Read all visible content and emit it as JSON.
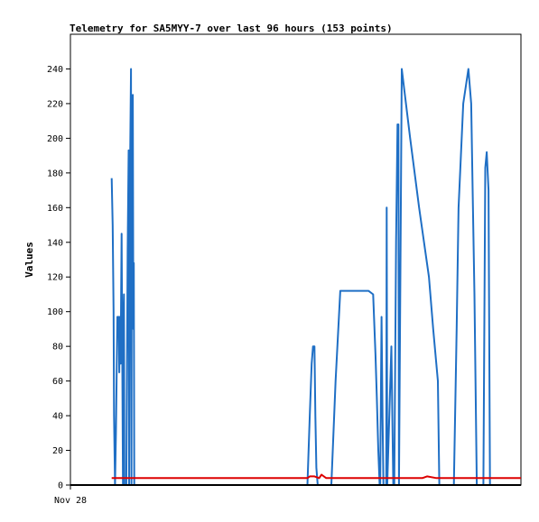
{
  "chart_data": {
    "type": "line",
    "title": "Telemetry for SA5MYY-7 over last 96 hours (153 points)",
    "xlabel": "",
    "ylabel": "Values",
    "x_tick_labels": [
      "Nov 28"
    ],
    "ylim": [
      0,
      260
    ],
    "y_ticks": [
      0,
      20,
      40,
      60,
      80,
      100,
      120,
      140,
      160,
      180,
      200,
      220,
      240
    ],
    "xlim": [
      0,
      96
    ],
    "grid": false,
    "legend": "none",
    "colors": {
      "series_blue": "#1f6fc5",
      "series_red": "#dd0000",
      "series_black": "#000000",
      "frame": "#000000"
    },
    "series": [
      {
        "color": "#1f6fc5",
        "x": [
          8.8,
          9.0,
          9.2,
          9.3,
          9.5,
          9.7,
          10.0,
          10.3,
          10.4,
          10.5,
          10.7,
          10.9,
          11.2,
          11.3,
          11.4,
          11.5,
          11.7,
          11.9,
          12.2,
          12.4,
          12.5,
          12.7,
          12.9,
          13.0,
          13.1,
          13.2,
          13.3,
          13.4,
          13.5,
          13.6,
          13.7,
          13.8,
          13.9,
          14.0,
          14.1,
          14.2,
          14.4,
          14.6,
          14.8,
          50.5,
          51.0,
          51.4,
          51.7,
          52.0,
          52.2,
          52.4,
          52.7,
          53.2,
          55.6,
          56.5,
          57.5,
          58.5,
          63.5,
          64.5,
          65.0,
          65.3,
          65.6,
          65.9,
          66.0,
          66.3,
          66.5,
          66.7,
          67.0,
          67.3,
          67.4,
          67.5,
          68.4,
          68.8,
          69.0,
          69.4,
          69.7,
          69.9,
          70.0,
          70.6,
          72.4,
          74.3,
          76.4,
          77.3,
          78.3,
          78.6,
          79.8,
          80.8,
          81.7,
          82.3,
          82.7,
          83.7,
          84.8,
          85.4,
          85.7,
          86.1,
          86.6,
          87.1,
          87.6,
          88.0,
          88.4,
          88.7,
          89.1,
          89.4
        ],
        "values": [
          177,
          150,
          100,
          40,
          0,
          30,
          97,
          97,
          65,
          97,
          70,
          145,
          0,
          95,
          110,
          0,
          0,
          0,
          135,
          193,
          0,
          180,
          240,
          0,
          224,
          105,
          225,
          90,
          128,
          0,
          0,
          0,
          0,
          0,
          0,
          0,
          0,
          0,
          0,
          0,
          40,
          70,
          80,
          80,
          40,
          10,
          0,
          0,
          0,
          60,
          112,
          112,
          112,
          110,
          75,
          50,
          20,
          0,
          0,
          97,
          40,
          0,
          0,
          0,
          160,
          0,
          80,
          0,
          0,
          140,
          208,
          208,
          0,
          240,
          200,
          160,
          120,
          90,
          60,
          0,
          0,
          0,
          0,
          90,
          160,
          220,
          240,
          220,
          170,
          110,
          0,
          0,
          0,
          0,
          183,
          192,
          170,
          0
        ]
      },
      {
        "color": "#dd0000",
        "x": [
          8.8,
          50.5,
          51.0,
          52.0,
          53.0,
          53.5,
          54.5,
          55.5,
          69.0,
          72.0,
          75.0,
          76.0,
          78.0,
          80.0,
          96.0
        ],
        "values": [
          4,
          4,
          5,
          5,
          4,
          6,
          4,
          4,
          4,
          4,
          4,
          5,
          4,
          4,
          4
        ]
      },
      {
        "color": "#000000",
        "x": [
          0,
          96
        ],
        "values": [
          0,
          0
        ]
      }
    ]
  }
}
